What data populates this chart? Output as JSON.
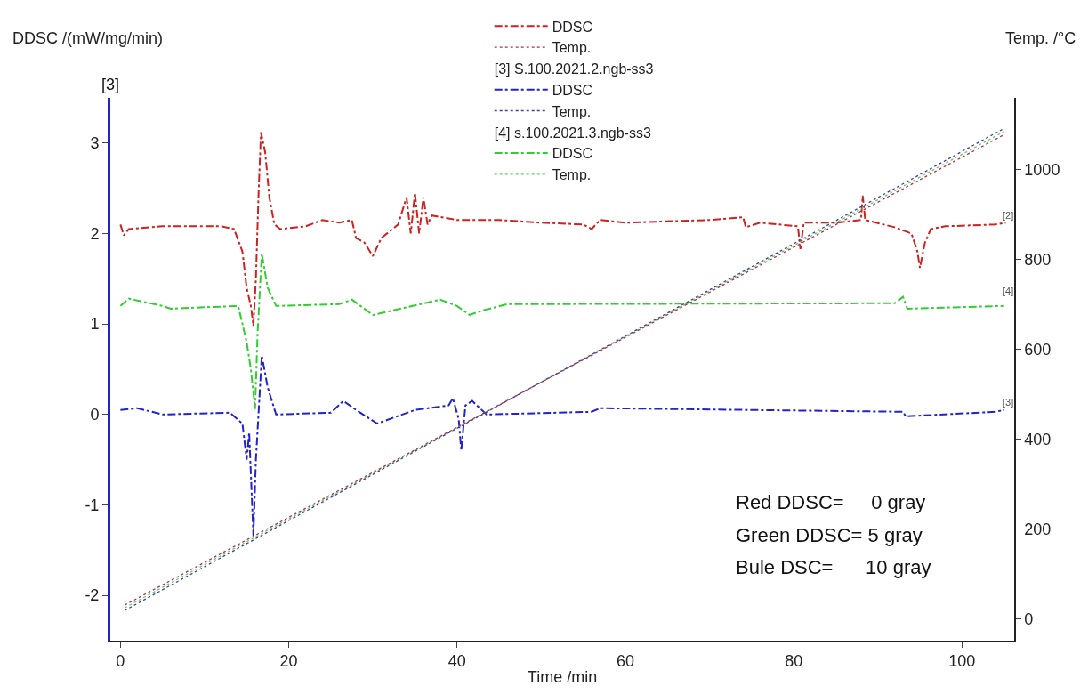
{
  "chart_data": {
    "type": "line",
    "xlabel": "Time /min",
    "ylabel": "DDSC /(mW/mg/min)",
    "y2label": "Temp. /°C",
    "xlim": [
      -1.2,
      106.2
    ],
    "xticks": [
      0,
      20,
      40,
      60,
      80,
      100
    ],
    "ylim": [
      -2.5,
      3.5
    ],
    "yticks": [
      -2,
      -1,
      0,
      1,
      2,
      3
    ],
    "y2lim": [
      -48,
      1160
    ],
    "y2ticks": [
      0,
      200,
      400,
      600,
      800,
      1000
    ],
    "legend": "top",
    "marker": "none",
    "series": [
      {
        "name": "DDSC",
        "color": "#cc2222",
        "line_style": "dashed",
        "x": [
          0,
          0.4,
          1,
          5,
          12,
          13.5,
          14.5,
          15,
          15.5,
          15.8,
          16.1,
          16.4,
          16.7,
          17.2,
          17.7,
          18.3,
          19,
          22,
          24,
          26,
          27.5,
          28,
          29,
          30,
          31,
          33,
          34,
          34.5,
          35,
          35.5,
          36,
          36.5,
          37,
          40,
          45,
          50,
          55,
          56,
          57,
          60,
          70,
          74,
          74.3,
          76,
          80.5,
          80.8,
          81.2,
          85,
          88,
          88.2,
          88.5,
          92,
          94,
          94.7,
          95,
          95.6,
          96.3,
          98,
          104,
          105.2
        ],
        "values": [
          2.1,
          1.98,
          2.05,
          2.08,
          2.08,
          2.05,
          1.8,
          1.4,
          1.2,
          0.98,
          1.5,
          2.4,
          3.12,
          2.9,
          2.4,
          2.1,
          2.05,
          2.08,
          2.15,
          2.12,
          2.15,
          1.95,
          1.9,
          1.75,
          1.95,
          2.1,
          2.4,
          2.0,
          2.45,
          2.0,
          2.4,
          2.1,
          2.2,
          2.15,
          2.15,
          2.12,
          2.1,
          2.05,
          2.15,
          2.12,
          2.15,
          2.18,
          2.07,
          2.12,
          2.08,
          1.83,
          2.12,
          2.12,
          2.15,
          2.42,
          2.15,
          2.07,
          2.0,
          1.8,
          1.62,
          1.9,
          2.05,
          2.08,
          2.1,
          2.12
        ]
      },
      {
        "name": "Temp.",
        "color": "#b03050",
        "line_style": "dotted",
        "axis": "y2",
        "x": [
          0.5,
          105
        ],
        "values": [
          31,
          1078
        ]
      },
      {
        "name": "DDSC",
        "color": "#2222cc",
        "line_style": "dashed",
        "x": [
          0,
          2,
          5,
          13,
          14.5,
          15,
          15.3,
          15.8,
          16.1,
          16.8,
          17.5,
          18.5,
          25,
          26.5,
          28,
          30.5,
          35,
          39,
          39.5,
          40.2,
          40.5,
          41,
          41.8,
          43.5,
          56,
          57,
          93,
          93.3,
          104,
          105
        ],
        "values": [
          0.05,
          0.07,
          0.0,
          0.02,
          -0.1,
          -0.5,
          -0.2,
          -1.34,
          -0.5,
          0.65,
          0.3,
          0.0,
          0.02,
          0.15,
          0.05,
          -0.1,
          0.05,
          0.1,
          0.18,
          -0.05,
          -0.4,
          0.1,
          0.15,
          0.0,
          0.03,
          0.07,
          0.03,
          -0.02,
          0.03,
          0.05
        ]
      },
      {
        "name": "Temp.",
        "color": "#4040a0",
        "line_style": "dotted",
        "axis": "y2",
        "x": [
          0.5,
          105
        ],
        "values": [
          19,
          1092
        ]
      },
      {
        "name": "DDSC",
        "color": "#33cc33",
        "line_style": "dashed",
        "x": [
          0,
          1,
          5,
          6,
          14,
          15,
          15.5,
          16,
          16.3,
          16.8,
          17.5,
          18.5,
          26,
          27.5,
          30,
          38,
          40,
          41.5,
          43,
          46,
          92,
          93,
          93.5,
          105
        ],
        "values": [
          1.2,
          1.28,
          1.2,
          1.17,
          1.2,
          0.8,
          0.5,
          0.06,
          0.9,
          1.78,
          1.4,
          1.2,
          1.22,
          1.27,
          1.1,
          1.27,
          1.2,
          1.1,
          1.15,
          1.22,
          1.23,
          1.3,
          1.17,
          1.2
        ]
      },
      {
        "name": "Temp.",
        "color": "#66cc66",
        "line_style": "dotted",
        "axis": "y2",
        "x": [
          0.5,
          105
        ],
        "values": [
          25,
          1085
        ]
      }
    ],
    "annotations": [
      "[3] S.100.2021.2.ngb-ss3",
      "[4] s.100.2021.3.ngb-ss3",
      "[3]",
      "Red DDSC=     0 gray",
      "Green DDSC= 5 gray",
      "Bule DSC=      10 gray",
      "[2]",
      "[4]",
      "[3]"
    ]
  }
}
